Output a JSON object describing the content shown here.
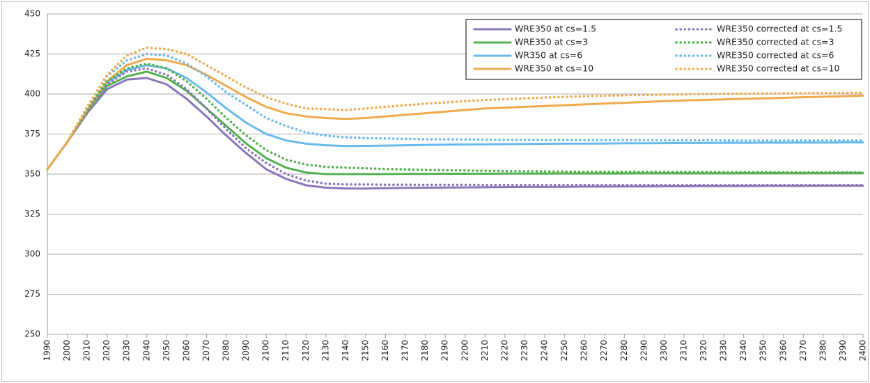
{
  "chart_data": {
    "type": "line",
    "x": [
      1990,
      2000,
      2010,
      2020,
      2030,
      2040,
      2050,
      2060,
      2070,
      2080,
      2090,
      2100,
      2110,
      2120,
      2130,
      2140,
      2150,
      2160,
      2170,
      2180,
      2190,
      2200,
      2210,
      2220,
      2230,
      2240,
      2250,
      2260,
      2270,
      2280,
      2290,
      2300,
      2310,
      2320,
      2330,
      2340,
      2350,
      2360,
      2370,
      2380,
      2390,
      2400
    ],
    "xlim": [
      1990,
      2400
    ],
    "xticks": [
      1990,
      2000,
      2010,
      2020,
      2030,
      2040,
      2050,
      2060,
      2070,
      2080,
      2090,
      2100,
      2110,
      2120,
      2130,
      2140,
      2150,
      2160,
      2170,
      2180,
      2190,
      2200,
      2210,
      2220,
      2230,
      2240,
      2250,
      2260,
      2270,
      2280,
      2290,
      2300,
      2310,
      2320,
      2330,
      2340,
      2350,
      2360,
      2370,
      2380,
      2390,
      2400
    ],
    "ylim": [
      250,
      450
    ],
    "yticks": [
      250,
      275,
      300,
      325,
      350,
      375,
      400,
      425,
      450
    ],
    "grid": true,
    "legend": "upper right",
    "series": [
      {
        "name": "WRE350 at cs=1.5",
        "color": "#8a76ba",
        "style": "solid",
        "values": [
          353,
          370,
          388,
          403,
          409,
          410,
          406,
          397,
          386,
          374,
          363,
          353,
          347,
          343,
          341.5,
          341,
          341,
          341.2,
          341.4,
          341.5,
          341.6,
          341.7,
          341.8,
          341.9,
          342,
          342,
          342.1,
          342.2,
          342.2,
          342.3,
          342.3,
          342.4,
          342.4,
          342.5,
          342.5,
          342.5,
          342.6,
          342.6,
          342.6,
          342.7,
          342.7,
          342.7
        ]
      },
      {
        "name": "WRE350 at cs=3",
        "color": "#52b04e",
        "style": "solid",
        "values": [
          353,
          370,
          389,
          405,
          411,
          414,
          410,
          402,
          391,
          380,
          369,
          360,
          354,
          351,
          350,
          350,
          350,
          350,
          350.1,
          350.1,
          350.2,
          350.2,
          350.2,
          350.3,
          350.3,
          350.3,
          350.4,
          350.4,
          350.4,
          350.4,
          350.5,
          350.5,
          350.5,
          350.5,
          350.5,
          350.6,
          350.6,
          350.6,
          350.6,
          350.6,
          350.7,
          350.7
        ]
      },
      {
        "name": "WR350 at cs=6",
        "color": "#6ab9ec",
        "style": "solid",
        "values": [
          353,
          370,
          390,
          407,
          415,
          418,
          416,
          410,
          401,
          391,
          382,
          375,
          371,
          369,
          368,
          367.5,
          367.6,
          367.8,
          368,
          368.2,
          368.4,
          368.5,
          368.6,
          368.7,
          368.8,
          368.9,
          369,
          369,
          369.1,
          369.2,
          369.2,
          369.3,
          369.4,
          369.4,
          369.5,
          369.5,
          369.6,
          369.6,
          369.7,
          369.7,
          369.8,
          369.8
        ]
      },
      {
        "name": "WRE350 at cs=10",
        "color": "#f0aa4c",
        "style": "solid",
        "values": [
          353,
          370,
          390,
          408,
          418,
          422,
          421,
          418,
          412,
          405,
          398,
          392,
          388,
          386,
          385,
          384.5,
          385,
          386,
          387,
          388,
          389,
          390,
          391,
          391.5,
          392,
          392.5,
          393,
          393.5,
          394,
          394.5,
          395,
          395.5,
          396,
          396.3,
          396.6,
          397,
          397.3,
          397.6,
          398,
          398.3,
          398.6,
          399
        ]
      },
      {
        "name": "WRE350 corrected at cs=1.5",
        "color": "#8a76ba",
        "style": "dotted",
        "values": [
          353,
          370,
          390,
          406,
          414,
          416,
          412,
          403,
          391,
          378,
          366,
          357,
          350,
          346,
          344,
          343.5,
          343.5,
          343.4,
          343.4,
          343.3,
          343.3,
          343.3,
          343.2,
          343.2,
          343.2,
          343.2,
          343.2,
          343.2,
          343.2,
          343.2,
          343.2,
          343.2,
          343.2,
          343.2,
          343.2,
          343.2,
          343.2,
          343.2,
          343.2,
          343.2,
          343.2,
          343.2
        ]
      },
      {
        "name": "WRE350 corrected at cs=3",
        "color": "#52b04e",
        "style": "dotted",
        "values": [
          353,
          370,
          391,
          408,
          416,
          419,
          416,
          408,
          397,
          385,
          374,
          365,
          359,
          356,
          354.5,
          354,
          353.6,
          353.2,
          352.9,
          352.6,
          352.4,
          352.2,
          352,
          351.9,
          351.8,
          351.7,
          351.6,
          351.5,
          351.5,
          351.4,
          351.4,
          351.3,
          351.3,
          351.3,
          351.2,
          351.2,
          351.2,
          351.1,
          351.1,
          351.1,
          351.1,
          351.1
        ]
      },
      {
        "name": "WRE350 corrected at cs=6",
        "color": "#6ab9ec",
        "style": "dotted",
        "values": [
          353,
          370,
          392,
          411,
          421,
          425,
          424,
          419,
          411,
          401,
          393,
          385,
          380,
          376,
          374,
          373,
          372.5,
          372.2,
          372,
          371.8,
          371.7,
          371.6,
          371.5,
          371.4,
          371.4,
          371.3,
          371.3,
          371.2,
          371.2,
          371.2,
          371.1,
          371.1,
          371.1,
          371.1,
          371,
          371,
          371,
          371,
          371,
          371,
          371,
          371
        ]
      },
      {
        "name": "WRE350 corrected at cs=10",
        "color": "#f0aa4c",
        "style": "dotted",
        "values": [
          353,
          370,
          392,
          412,
          424,
          429,
          428,
          425,
          418,
          411,
          404,
          398,
          394,
          391,
          390.5,
          390,
          391,
          392,
          393,
          394,
          394.8,
          395.5,
          396.2,
          396.8,
          397.3,
          397.8,
          398.2,
          398.6,
          398.9,
          399.2,
          399.4,
          399.6,
          399.8,
          400,
          400.1,
          400.2,
          400.3,
          400.4,
          400.5,
          400.6,
          400.7,
          400.8
        ]
      }
    ]
  }
}
